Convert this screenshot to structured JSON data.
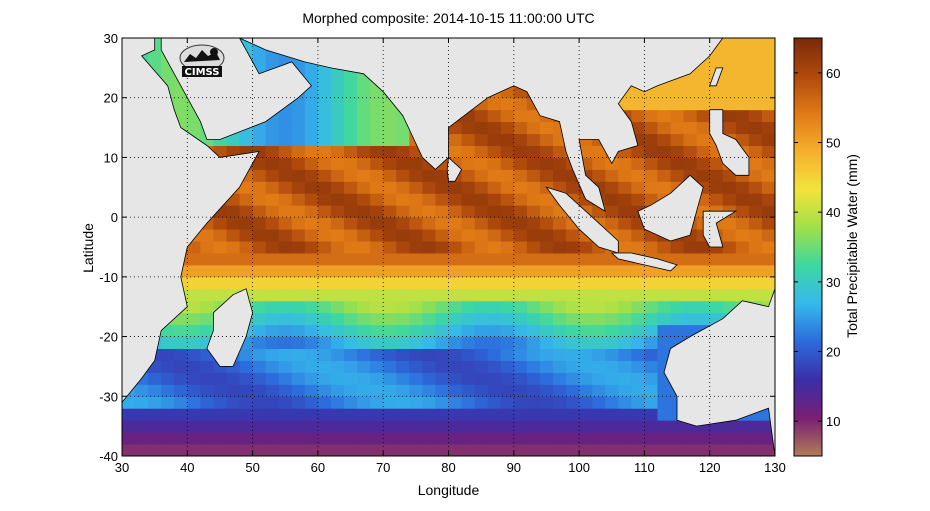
{
  "title": "Morphed composite: 2014-10-15 11:00:00 UTC",
  "xlabel": "Longitude",
  "ylabel": "Latitude",
  "colorbar_label": "Total Precipitable Water (mm)",
  "logo_text": "CIMSS",
  "colors": {
    "land": "#e6e6e6",
    "coast": "#000000",
    "colormap": [
      "#b07c58",
      "#7a1f73",
      "#3a2ea8",
      "#2c6bdc",
      "#36b8ec",
      "#3cd7a2",
      "#9fe04a",
      "#f2e33a",
      "#f5b02e",
      "#e07a16",
      "#b04a0c",
      "#7a2a0a"
    ]
  },
  "chart_data": {
    "type": "heatmap",
    "title": "Morphed composite: 2014-10-15 11:00:00 UTC",
    "xlabel": "Longitude",
    "ylabel": "Latitude",
    "xlim": [
      30,
      130
    ],
    "ylim": [
      -40,
      30
    ],
    "xticks": [
      30,
      40,
      50,
      60,
      70,
      80,
      90,
      100,
      110,
      120,
      130
    ],
    "yticks": [
      -40,
      -30,
      -20,
      -10,
      0,
      10,
      20,
      30
    ],
    "grid": true,
    "colorbar": {
      "label": "Total Precipitable Water (mm)",
      "range": [
        5,
        65
      ],
      "ticks": [
        10,
        20,
        30,
        40,
        50,
        60
      ]
    }
  }
}
